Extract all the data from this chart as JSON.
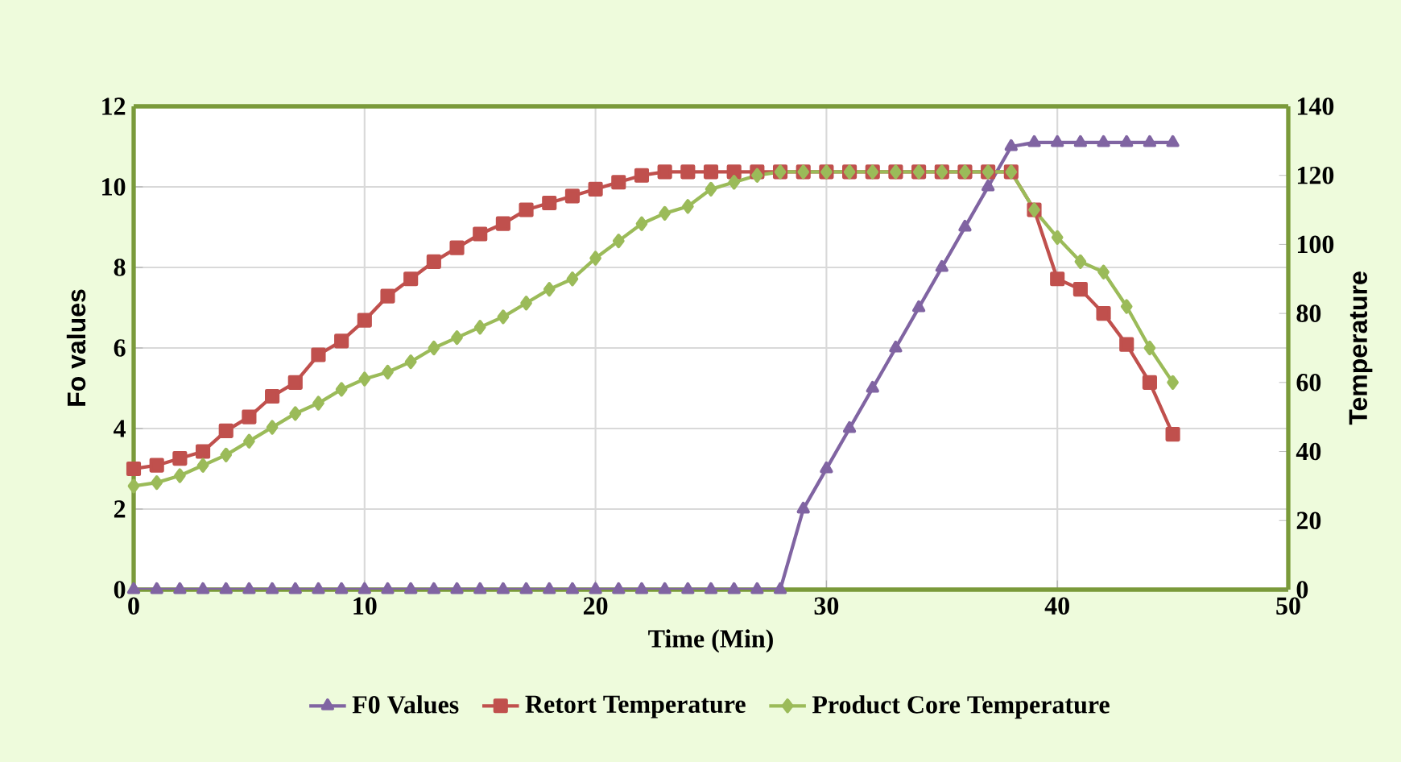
{
  "chart_data": {
    "type": "line",
    "xlabel": "Time (Min)",
    "ylabel": "Fo values",
    "y2label": "Temperature",
    "x": [
      0,
      1,
      2,
      3,
      4,
      5,
      6,
      7,
      8,
      9,
      10,
      11,
      12,
      13,
      14,
      15,
      16,
      17,
      18,
      19,
      20,
      21,
      22,
      23,
      24,
      25,
      26,
      27,
      28,
      29,
      30,
      31,
      32,
      33,
      34,
      35,
      36,
      37,
      38,
      39,
      40,
      41,
      42,
      43,
      44,
      45
    ],
    "series": [
      {
        "name": "F0 Values",
        "color": "#8064a2",
        "marker": "triangle",
        "values": [
          0,
          0,
          0,
          0,
          0,
          0,
          0,
          0,
          0,
          0,
          0,
          0,
          0,
          0,
          0,
          0,
          0,
          0,
          0,
          0,
          0,
          0,
          0,
          0,
          0,
          0,
          0,
          0,
          0,
          2,
          3,
          4,
          5,
          6,
          7,
          8,
          9,
          10,
          11,
          11.1,
          11.1,
          11.1,
          11.1,
          11.1,
          11.1,
          11.1
        ]
      },
      {
        "name": "Retort Temperature",
        "color": "#c0504d",
        "marker": "square",
        "axis": "y2",
        "values": [
          35,
          36,
          38,
          40,
          46,
          50,
          56,
          60,
          68,
          72,
          78,
          85,
          90,
          95,
          99,
          103,
          106,
          110,
          112,
          114,
          116,
          118,
          120,
          121,
          121,
          121,
          121,
          121,
          121,
          121,
          121,
          121,
          121,
          121,
          121,
          121,
          121,
          121,
          121,
          110,
          90,
          87,
          80,
          71,
          60,
          45
        ]
      },
      {
        "name": "Product Core Temperature",
        "color": "#9bbb59",
        "marker": "diamond",
        "axis": "y2",
        "values": [
          30,
          31,
          33,
          36,
          39,
          43,
          47,
          51,
          54,
          58,
          61,
          63,
          66,
          70,
          73,
          76,
          79,
          83,
          87,
          90,
          96,
          101,
          106,
          109,
          111,
          116,
          118,
          120,
          121,
          121,
          121,
          121,
          121,
          121,
          121,
          121,
          121,
          121,
          121,
          110,
          102,
          95,
          92,
          82,
          70,
          60
        ]
      }
    ],
    "xlim": [
      0,
      50
    ],
    "xticks": [
      0,
      10,
      20,
      30,
      40,
      50
    ],
    "ylim": [
      0,
      12
    ],
    "yticks": [
      0,
      2,
      4,
      6,
      8,
      10,
      12
    ],
    "y2lim": [
      0,
      140
    ],
    "y2ticks": [
      0,
      20,
      40,
      60,
      80,
      100,
      120,
      140
    ],
    "grid": true,
    "legend": "bottom",
    "line_style": "solid"
  }
}
